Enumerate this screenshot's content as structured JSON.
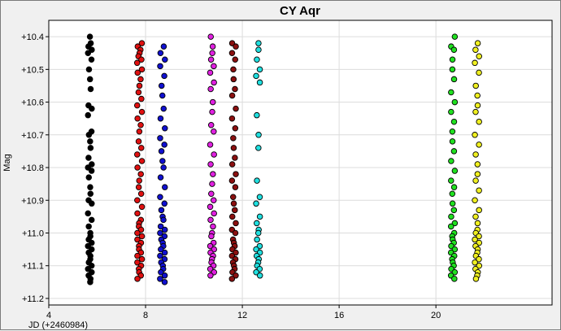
{
  "chart_data": {
    "type": "scatter",
    "title": "CY Aqr",
    "xlabel": "JD (+2460984)",
    "ylabel": "Mag",
    "xlim": [
      4,
      24.8
    ],
    "ylim": [
      10.35,
      11.22
    ],
    "y_inverted": true,
    "grid": true,
    "x_ticks": [
      4,
      8,
      12,
      16,
      20
    ],
    "x_tick_labels": [
      "4",
      "8",
      "12",
      "16",
      "20"
    ],
    "y_ticks": [
      10.4,
      10.5,
      10.6,
      10.7,
      10.8,
      10.9,
      11.0,
      11.1,
      11.2
    ],
    "y_tick_labels": [
      "+10.4",
      "+10.5",
      "+10.6",
      "+10.7",
      "+10.8",
      "+10.9",
      "+11.0",
      "+11.1",
      "+11.2"
    ],
    "series": [
      {
        "color": "#000000",
        "x_center": 5.7,
        "x_jitter": 0.08,
        "y": [
          10.4,
          10.42,
          10.43,
          10.44,
          10.45,
          10.47,
          10.5,
          10.53,
          10.56,
          10.61,
          10.62,
          10.64,
          10.69,
          10.7,
          10.72,
          10.74,
          10.77,
          10.79,
          10.8,
          10.81,
          10.83,
          10.86,
          10.88,
          10.9,
          10.91,
          10.94,
          10.96,
          10.98,
          11.0,
          11.01,
          11.02,
          11.03,
          11.04,
          11.05,
          11.06,
          11.07,
          11.08,
          11.09,
          11.1,
          11.11,
          11.12,
          11.13,
          11.14,
          11.15
        ]
      },
      {
        "color": "#e01010",
        "x_center": 7.75,
        "x_jitter": 0.1,
        "y": [
          10.42,
          10.43,
          10.44,
          10.45,
          10.46,
          10.47,
          10.48,
          10.5,
          10.51,
          10.53,
          10.55,
          10.57,
          10.59,
          10.61,
          10.63,
          10.65,
          10.67,
          10.69,
          10.72,
          10.74,
          10.76,
          10.78,
          10.8,
          10.82,
          10.84,
          10.86,
          10.88,
          10.9,
          10.92,
          10.94,
          10.96,
          10.97,
          10.98,
          10.99,
          11.0,
          11.01,
          11.02,
          11.03,
          11.04,
          11.05,
          11.06,
          11.07,
          11.08,
          11.09,
          11.1,
          11.11,
          11.12,
          11.13,
          11.14
        ]
      },
      {
        "color": "#1010d0",
        "x_center": 8.7,
        "x_jitter": 0.1,
        "y": [
          10.43,
          10.45,
          10.47,
          10.49,
          10.52,
          10.55,
          10.58,
          10.62,
          10.65,
          10.68,
          10.71,
          10.73,
          10.75,
          10.78,
          10.8,
          10.83,
          10.86,
          10.89,
          10.91,
          10.93,
          10.95,
          10.96,
          10.98,
          10.99,
          11.0,
          11.01,
          11.02,
          11.03,
          11.04,
          11.05,
          11.06,
          11.07,
          11.08,
          11.09,
          11.1,
          11.11,
          11.12,
          11.13,
          11.14,
          11.15
        ]
      },
      {
        "color": "#e020e0",
        "x_center": 10.75,
        "x_jitter": 0.08,
        "y": [
          10.4,
          10.43,
          10.45,
          10.47,
          10.49,
          10.51,
          10.54,
          10.56,
          10.6,
          10.63,
          10.67,
          10.69,
          10.73,
          10.76,
          10.79,
          10.82,
          10.85,
          10.88,
          10.9,
          10.92,
          10.94,
          10.96,
          10.98,
          11.0,
          11.01,
          11.03,
          11.04,
          11.05,
          11.06,
          11.07,
          11.08,
          11.09,
          11.1,
          11.11,
          11.12,
          11.13
        ]
      },
      {
        "color": "#8b1010",
        "x_center": 11.65,
        "x_jitter": 0.08,
        "y": [
          10.42,
          10.43,
          10.45,
          10.47,
          10.5,
          10.53,
          10.56,
          10.58,
          10.62,
          10.65,
          10.68,
          10.71,
          10.74,
          10.77,
          10.79,
          10.82,
          10.84,
          10.86,
          10.89,
          10.91,
          10.93,
          10.95,
          10.97,
          10.99,
          11.0,
          11.02,
          11.03,
          11.04,
          11.05,
          11.06,
          11.07,
          11.08,
          11.09,
          11.1,
          11.11,
          11.12,
          11.13,
          11.14
        ]
      },
      {
        "color": "#20e0e0",
        "x_center": 12.65,
        "x_jitter": 0.08,
        "y": [
          10.42,
          10.44,
          10.47,
          10.5,
          10.52,
          10.54,
          10.64,
          10.7,
          10.74,
          10.84,
          10.89,
          10.91,
          10.95,
          10.97,
          10.99,
          11.0,
          11.02,
          11.04,
          11.05,
          11.06,
          11.07,
          11.08,
          11.09,
          11.1,
          11.11,
          11.12,
          11.13
        ]
      },
      {
        "color": "#20e020",
        "x_center": 20.7,
        "x_jitter": 0.08,
        "y": [
          10.4,
          10.43,
          10.44,
          10.47,
          10.5,
          10.53,
          10.57,
          10.6,
          10.63,
          10.66,
          10.69,
          10.72,
          10.75,
          10.78,
          10.81,
          10.84,
          10.86,
          10.88,
          10.91,
          10.93,
          10.95,
          10.97,
          10.98,
          11.0,
          11.01,
          11.02,
          11.03,
          11.04,
          11.05,
          11.06,
          11.07,
          11.08,
          11.09,
          11.1,
          11.11,
          11.12,
          11.13,
          11.14
        ]
      },
      {
        "color": "#f0f020",
        "x_center": 21.7,
        "x_jitter": 0.09,
        "y": [
          10.42,
          10.44,
          10.46,
          10.48,
          10.51,
          10.55,
          10.58,
          10.61,
          10.63,
          10.66,
          10.7,
          10.73,
          10.76,
          10.79,
          10.82,
          10.84,
          10.87,
          10.9,
          10.93,
          10.95,
          10.97,
          10.99,
          11.0,
          11.01,
          11.02,
          11.03,
          11.04,
          11.05,
          11.06,
          11.07,
          11.08,
          11.09,
          11.1,
          11.11,
          11.12,
          11.13,
          11.14
        ]
      }
    ]
  }
}
